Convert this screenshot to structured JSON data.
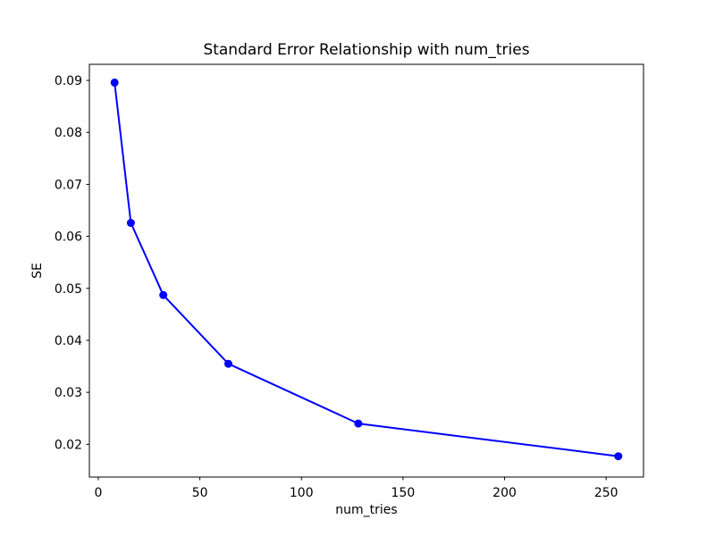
{
  "figure": {
    "background": "#ffffff"
  },
  "chart_data": {
    "type": "line",
    "title": "Standard Error Relationship with num_tries",
    "xlabel": "num_tries",
    "ylabel": "SE",
    "x": [
      8,
      16,
      32,
      64,
      128,
      256
    ],
    "series": [
      {
        "name": "SE",
        "color": "#0000ff",
        "marker": "circle",
        "values": [
          0.0896,
          0.0626,
          0.0487,
          0.0355,
          0.024,
          0.0177
        ]
      }
    ],
    "xlim": [
      -4.4,
      268.4
    ],
    "ylim": [
      0.0137,
      0.0931
    ],
    "xticks": [
      0,
      50,
      100,
      150,
      200,
      250
    ],
    "yticks": [
      0.02,
      0.03,
      0.04,
      0.05,
      0.06,
      0.07,
      0.08,
      0.09
    ],
    "ytick_decimals": 2,
    "grid": false,
    "legend": false,
    "spine_color": "#000000",
    "text_color": "#000000"
  }
}
